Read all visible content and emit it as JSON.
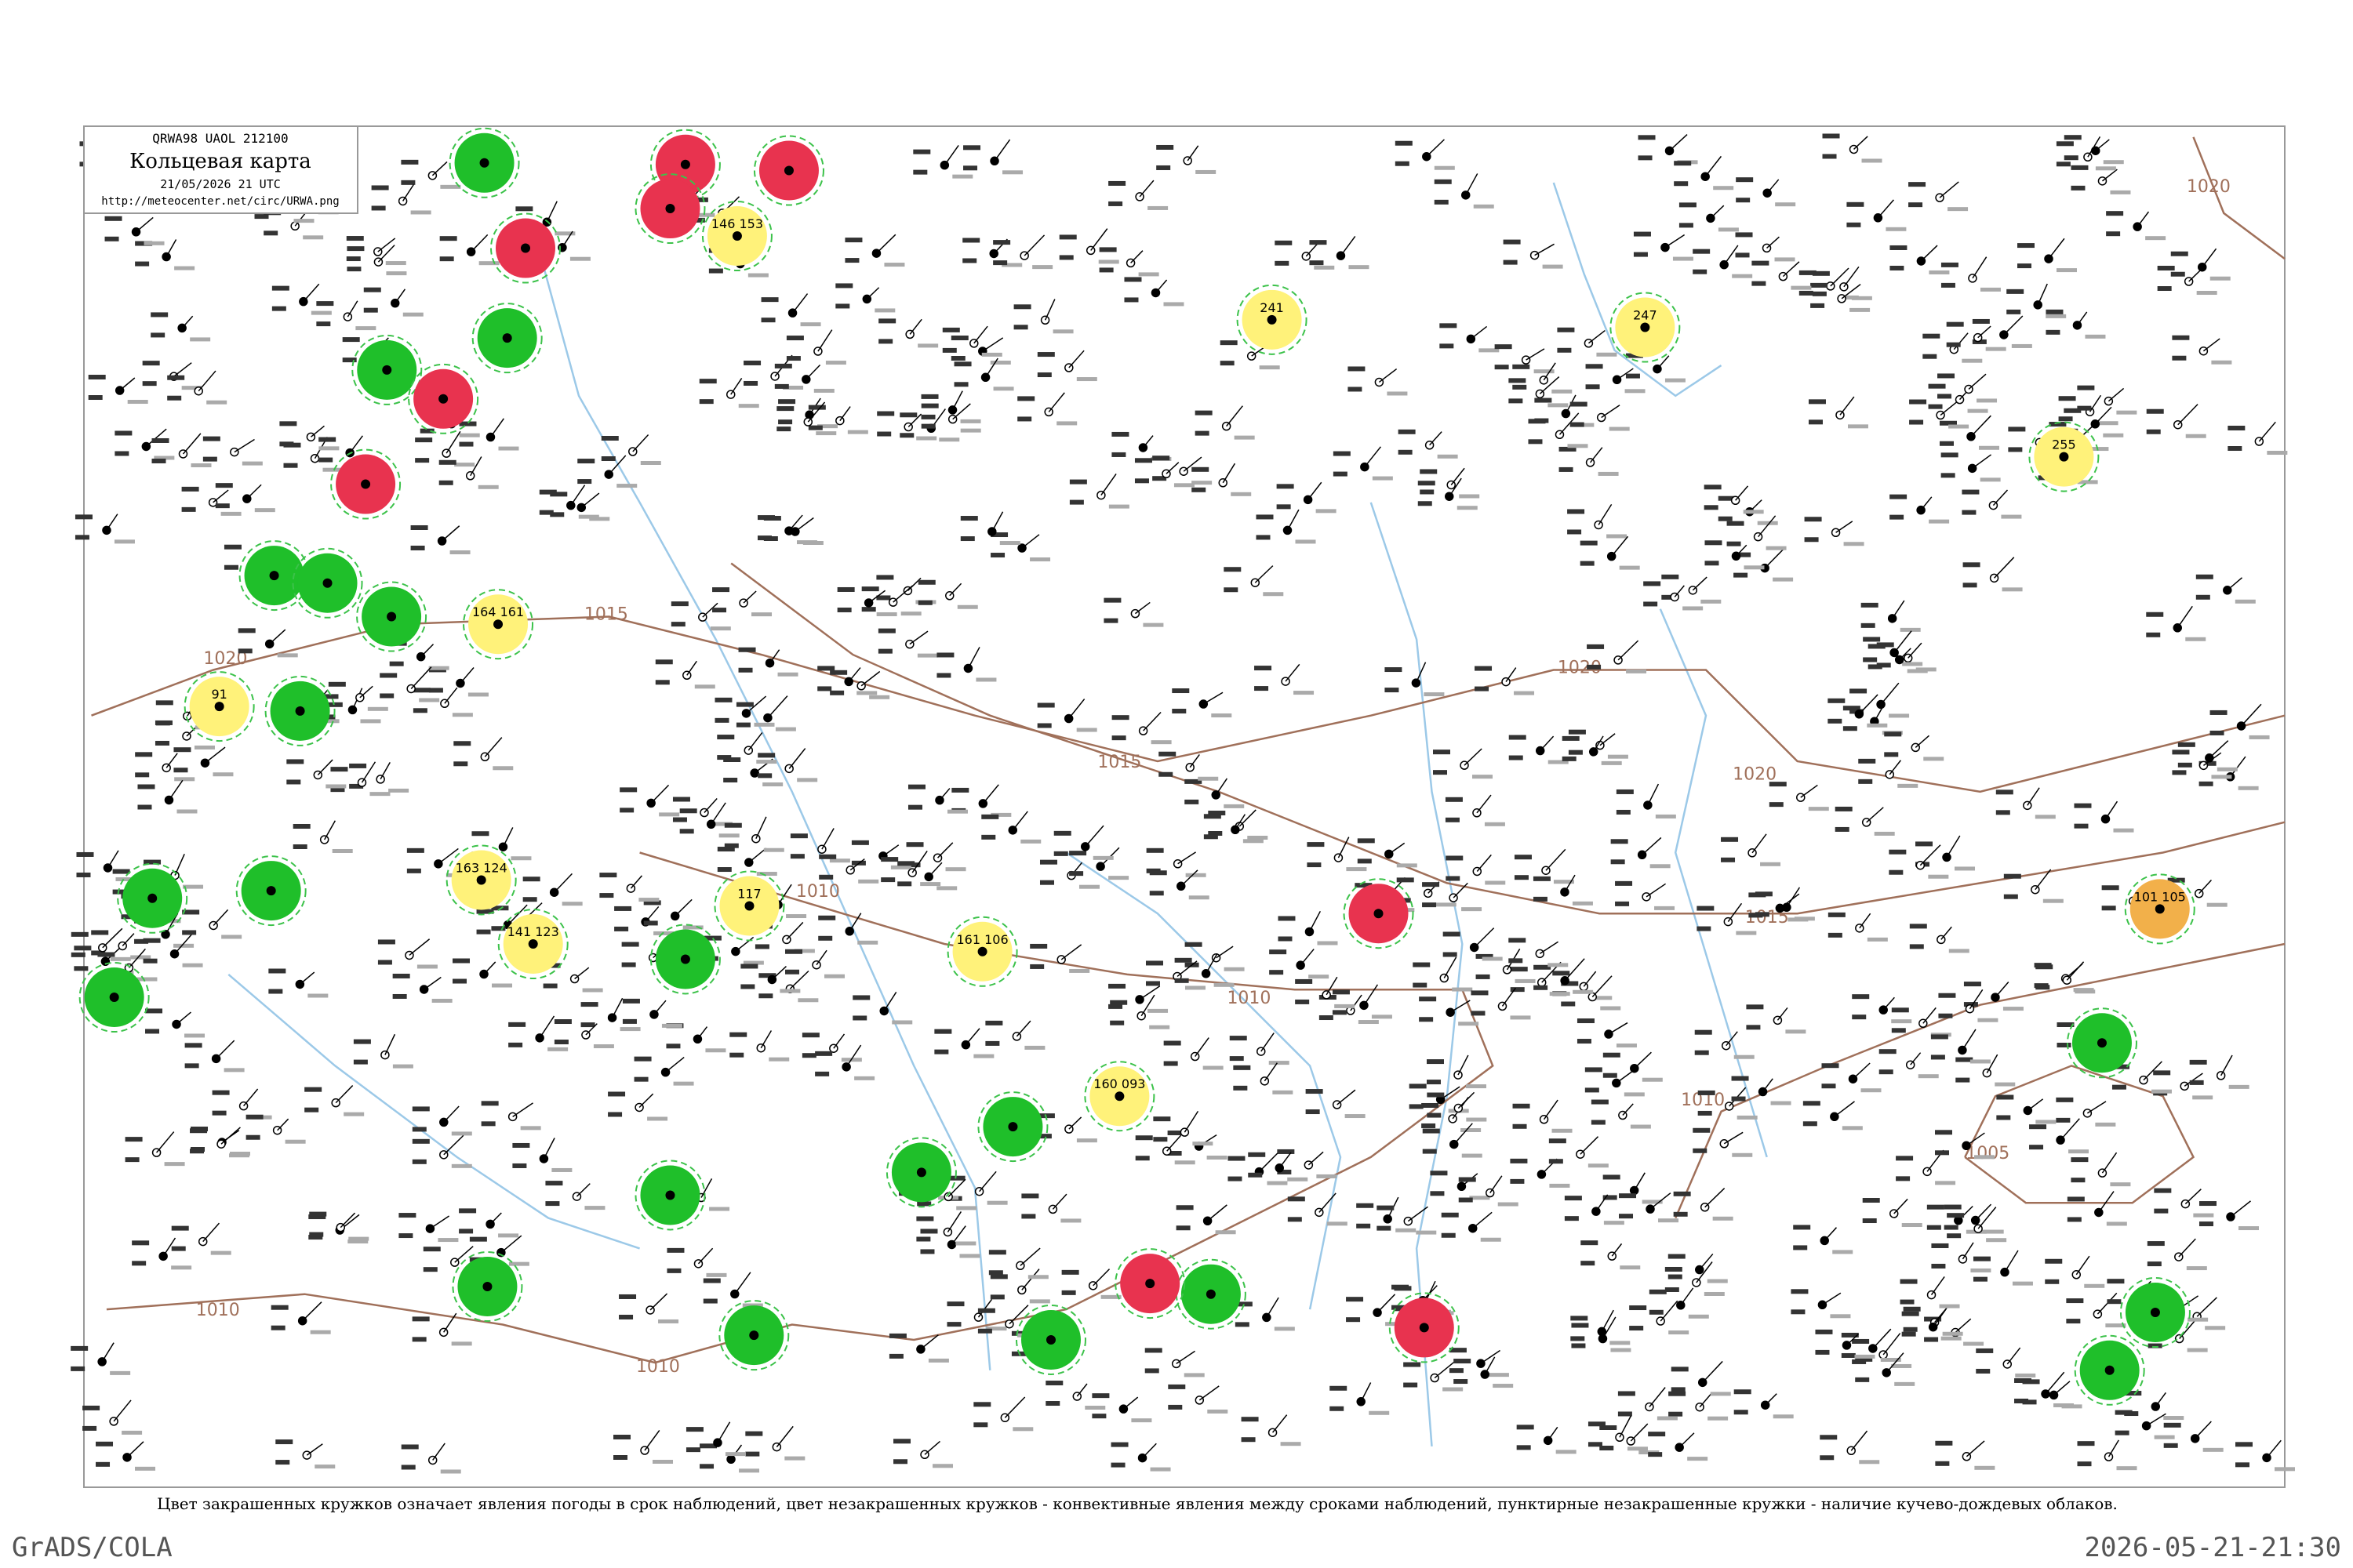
{
  "header": {
    "code": "QRWA98  UAOL  212100",
    "title": "Кольцевая карта",
    "date": "21/05/2026 21 UTC",
    "url": "http://meteocenter.net/circ/URWA.png"
  },
  "isobars": {
    "labels": [
      "1020",
      "1020",
      "1020",
      "1020",
      "1015",
      "1015",
      "1015",
      "1010",
      "1010",
      "1010",
      "1010",
      "1010",
      "1005"
    ]
  },
  "stations": [
    {
      "color": "#1fbf2a"
    },
    {
      "color": "#1fbf2a"
    },
    {
      "color": "#1fbf2a"
    },
    {
      "color": "#1fbf2a"
    },
    {
      "color": "#1fbf2a"
    },
    {
      "color": "#1fbf2a"
    },
    {
      "color": "#1fbf2a"
    },
    {
      "color": "#1fbf2a"
    },
    {
      "color": "#1fbf2a"
    },
    {
      "color": "#1fbf2a"
    },
    {
      "color": "#1fbf2a"
    },
    {
      "color": "#1fbf2a"
    },
    {
      "color": "#1fbf2a"
    },
    {
      "color": "#1fbf2a"
    },
    {
      "color": "#1fbf2a"
    },
    {
      "color": "#1fbf2a"
    },
    {
      "color": "#1fbf2a"
    },
    {
      "color": "#1fbf2a"
    },
    {
      "color": "#1fbf2a"
    },
    {
      "color": "#1fbf2a"
    },
    {
      "color": "#1fbf2a"
    },
    {
      "color": "#e8334f"
    },
    {
      "color": "#e8334f"
    },
    {
      "color": "#e8334f"
    },
    {
      "color": "#e8334f"
    },
    {
      "color": "#e8334f"
    },
    {
      "color": "#e8334f"
    },
    {
      "color": "#e8334f"
    },
    {
      "color": "#e8334f"
    },
    {
      "color": "#e8334f"
    },
    {
      "color": "#fff27a",
      "label": "146 153"
    },
    {
      "color": "#fff27a",
      "label": "241"
    },
    {
      "color": "#fff27a",
      "label": "247"
    },
    {
      "color": "#fff27a",
      "label": "255"
    },
    {
      "color": "#fff27a",
      "label": "164 161"
    },
    {
      "color": "#fff27a",
      "label": "91"
    },
    {
      "color": "#fff27a",
      "label": "163 124"
    },
    {
      "color": "#fff27a",
      "label": "141 123"
    },
    {
      "color": "#fff27a",
      "label": "117"
    },
    {
      "color": "#fff27a",
      "label": "161 106"
    },
    {
      "color": "#fff27a",
      "label": "160 093"
    },
    {
      "color": "#f2b04a",
      "label": "101 105"
    }
  ],
  "footer": {
    "caption": "Цвет закрашенных кружков означает явления погоды в срок наблюдений, цвет незакрашенных кружков - конвективные явления между сроками наблюдений, пунктирные незакрашенные кружки - наличие кучево-дождевых облаков.",
    "left": "GrADS/COLA",
    "right": "2026-05-21-21:30"
  }
}
